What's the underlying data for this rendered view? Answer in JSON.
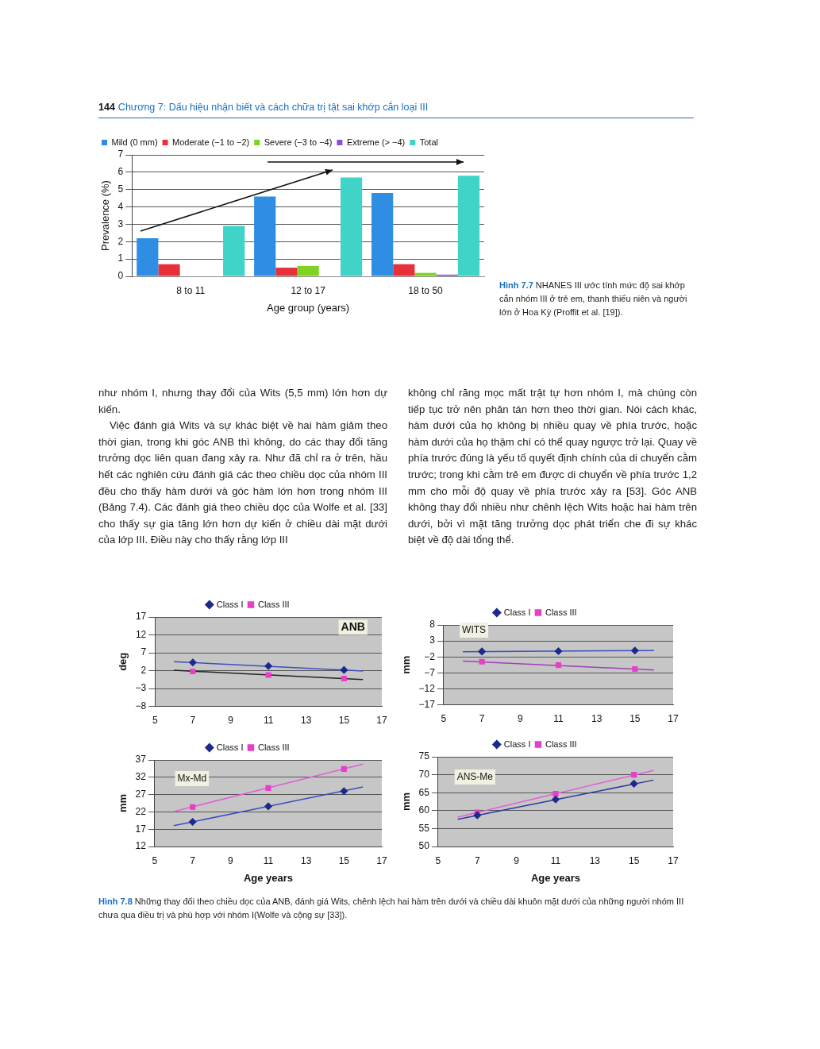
{
  "chart_data": [
    {
      "type": "bar",
      "xlabel": "Age group (years)",
      "ylabel": "Prevalence (%)",
      "categories": [
        "8 to 11",
        "12 to 17",
        "18 to 50"
      ],
      "series": [
        {
          "name": "Mild (0 mm)",
          "color": "#2f8de4",
          "values": [
            2.2,
            4.6,
            4.8
          ]
        },
        {
          "name": "Moderate (−1 to −2)",
          "color": "#e8303a",
          "values": [
            0.7,
            0.5,
            0.7
          ]
        },
        {
          "name": "Severe (−3 to −4)",
          "color": "#7ed321",
          "values": [
            null,
            0.6,
            0.2
          ]
        },
        {
          "name": "Extreme (> −4)",
          "color": "#8a4fd8",
          "values": [
            null,
            null,
            0.1
          ]
        },
        {
          "name": "Total",
          "color": "#40d4c8",
          "values": [
            2.9,
            5.7,
            5.8
          ]
        }
      ],
      "ylim": [
        0,
        7
      ],
      "yticks": [
        0,
        1,
        2,
        3,
        4,
        5,
        6,
        7
      ],
      "grid": "y",
      "legend": "top",
      "annotations": [
        "144",
        "Chương 7: Dấu hiệu nhận biết và cách chữa trị tật sai khớp cắn loại III",
        "Hình 7.7",
        "NHANES III ước tính mức độ sai khớp cắn nhóm III ở trẻ em, thanh thiếu niên và người lớn ở Hoa Kỳ (Proffit et al. [19]).",
        "như nhóm I, nhưng thay đổi của Wits (5,5 mm) lớn hơn dự kiến.",
        "Việc đánh giá Wits và sự khác biệt về hai hàm giảm theo thời gian, trong khi góc ANB thì không, do các thay đổi tăng trưởng dọc liên quan đang xảy ra. Như đã chỉ ra ở trên, hầu hết các nghiên cứu đánh giá các theo chiều dọc của nhóm III đều cho thấy hàm dưới và góc hàm lớn hơn trong nhóm III (Bảng 7.4). Các đánh giá theo chiều dọc của Wolfe et al. [33] cho thấy sự gia tăng lớn hơn dự kiến ở chiều dài mặt dưới của lớp III. Điều này cho thấy rằng lớp III",
        "không chỉ răng mọc mất trật tự hơn nhóm I, mà chúng còn tiếp tục trở nên phân tán hơn theo thời gian. Nói cách khác, hàm dưới của họ không bị nhiều quay về phía trước, hoặc hàm dưới của họ thậm chí có thể quay ngược trở lại. Quay về phía trước đúng là yếu tố quyết định chính của di chuyển cằm trước; trong khi cằm trẻ em được di chuyển về phía trước 1,2 mm cho mỗi độ quay về phía trước xảy ra [53]. Góc ANB không thay đổi nhiều như chênh lệch Wits hoặc hai hàm trên dưới, bởi vì mặt tăng trưởng dọc phát triển che đi sự khác biệt về độ dài tổng thể."
      ]
    },
    {
      "type": "scatter",
      "ylabel": "deg",
      "legend": "top",
      "grid": "y",
      "xlim": [
        5,
        17
      ],
      "xticks": [
        5,
        7,
        9,
        11,
        13,
        15,
        17
      ],
      "ylim": [
        -8,
        17
      ],
      "yticks": [
        {
          "value": -8,
          "label": "−8"
        },
        {
          "value": -3,
          "label": "−3"
        },
        2,
        7,
        12,
        17
      ],
      "series": [
        {
          "name": "Class I",
          "color": "#1c2a8a",
          "marker": "diamond",
          "x": [
            7,
            11,
            15
          ],
          "values": [
            4.3,
            3.3,
            2.2
          ]
        },
        {
          "name": "Class III",
          "color": "#e83ec8",
          "marker": "square",
          "x": [
            7,
            11,
            15
          ],
          "values": [
            1.8,
            0.8,
            -0.2
          ]
        },
        {
          "type": "line",
          "color": "#3b4fc0",
          "marker": "none",
          "x": [
            6,
            16
          ],
          "values": [
            4.5,
            1.9
          ]
        },
        {
          "type": "line",
          "color": "#222222",
          "marker": "none",
          "x": [
            6,
            16
          ],
          "values": [
            2.1,
            -0.5
          ]
        }
      ],
      "annotations": [
        "ANB"
      ]
    },
    {
      "type": "scatter",
      "ylabel": "mm",
      "legend": "top",
      "grid": "y",
      "xlim": [
        5,
        17
      ],
      "xticks": [
        5,
        7,
        9,
        11,
        13,
        15,
        17
      ],
      "ylim": [
        -17,
        8
      ],
      "yticks": [
        {
          "value": -17,
          "label": "−17"
        },
        {
          "value": -12,
          "label": "−12"
        },
        {
          "value": -7,
          "label": "−7"
        },
        {
          "value": -2,
          "label": "−2"
        },
        3,
        8
      ],
      "series": [
        {
          "name": "Class I",
          "color": "#1c2a8a",
          "marker": "diamond",
          "x": [
            7,
            11,
            15
          ],
          "values": [
            -0.3,
            -0.2,
            0.0
          ]
        },
        {
          "name": "Class III",
          "color": "#e83ec8",
          "marker": "square",
          "x": [
            7,
            11,
            15
          ],
          "values": [
            -3.5,
            -4.6,
            -5.8
          ]
        },
        {
          "type": "line",
          "color": "#3b4fc0",
          "marker": "none",
          "x": [
            6,
            16
          ],
          "values": [
            -0.4,
            0.0
          ]
        },
        {
          "type": "line",
          "color": "#a040b8",
          "marker": "none",
          "x": [
            6,
            16
          ],
          "values": [
            -3.3,
            -6.1
          ]
        }
      ],
      "annotations": [
        "WITS"
      ]
    },
    {
      "type": "scatter",
      "xlabel": "Age years",
      "ylabel": "mm",
      "legend": "top",
      "grid": "y",
      "xlim": [
        5,
        17
      ],
      "xticks": [
        5,
        7,
        9,
        11,
        13,
        15,
        17
      ],
      "ylim": [
        12,
        37
      ],
      "yticks": [
        12,
        17,
        22,
        27,
        32,
        37
      ],
      "series": [
        {
          "name": "Class I",
          "color": "#1c2a8a",
          "marker": "diamond",
          "x": [
            7,
            11,
            15
          ],
          "values": [
            19.1,
            23.6,
            28.0
          ]
        },
        {
          "name": "Class III",
          "color": "#e83ec8",
          "marker": "square",
          "x": [
            7,
            11,
            15
          ],
          "values": [
            23.4,
            28.9,
            34.4
          ]
        },
        {
          "type": "line",
          "color": "#3b4fc0",
          "marker": "none",
          "x": [
            6,
            16
          ],
          "values": [
            18.0,
            29.2
          ]
        },
        {
          "type": "line",
          "color": "#e060d8",
          "marker": "none",
          "x": [
            6,
            16
          ],
          "values": [
            22.1,
            35.8
          ]
        }
      ],
      "annotations": [
        "Mx-Md"
      ]
    },
    {
      "type": "scatter",
      "xlabel": "Age years",
      "ylabel": "mm",
      "legend": "top",
      "grid": "y",
      "xlim": [
        5,
        17
      ],
      "xticks": [
        5,
        7,
        9,
        11,
        13,
        15,
        17
      ],
      "ylim": [
        50,
        75
      ],
      "yticks": [
        50,
        55,
        60,
        65,
        70,
        75
      ],
      "series": [
        {
          "name": "Class I",
          "color": "#1c2a8a",
          "marker": "diamond",
          "x": [
            7,
            11,
            15
          ],
          "values": [
            58.7,
            63.1,
            67.5
          ]
        },
        {
          "name": "Class III",
          "color": "#e83ec8",
          "marker": "square",
          "x": [
            7,
            11,
            15
          ],
          "values": [
            59.5,
            64.7,
            70.0
          ]
        },
        {
          "type": "line",
          "color": "#2a3a9a",
          "marker": "none",
          "x": [
            6,
            16
          ],
          "values": [
            57.6,
            68.5
          ]
        },
        {
          "type": "line",
          "color": "#e060d8",
          "marker": "none",
          "x": [
            6,
            16
          ],
          "values": [
            58.2,
            71.2
          ]
        }
      ],
      "annotations": [
        "ANS-Me",
        "Hình 7.8",
        "Những thay đổi theo chiều dọc của ANB, đánh giá Wits, chênh lệch hai hàm trên dưới và chiều dài khuôn mặt dưới của những người nhóm III chưa qua điều trị và phù hợp với nhóm I(Wolfe và cộng sự [33])."
      ]
    }
  ]
}
